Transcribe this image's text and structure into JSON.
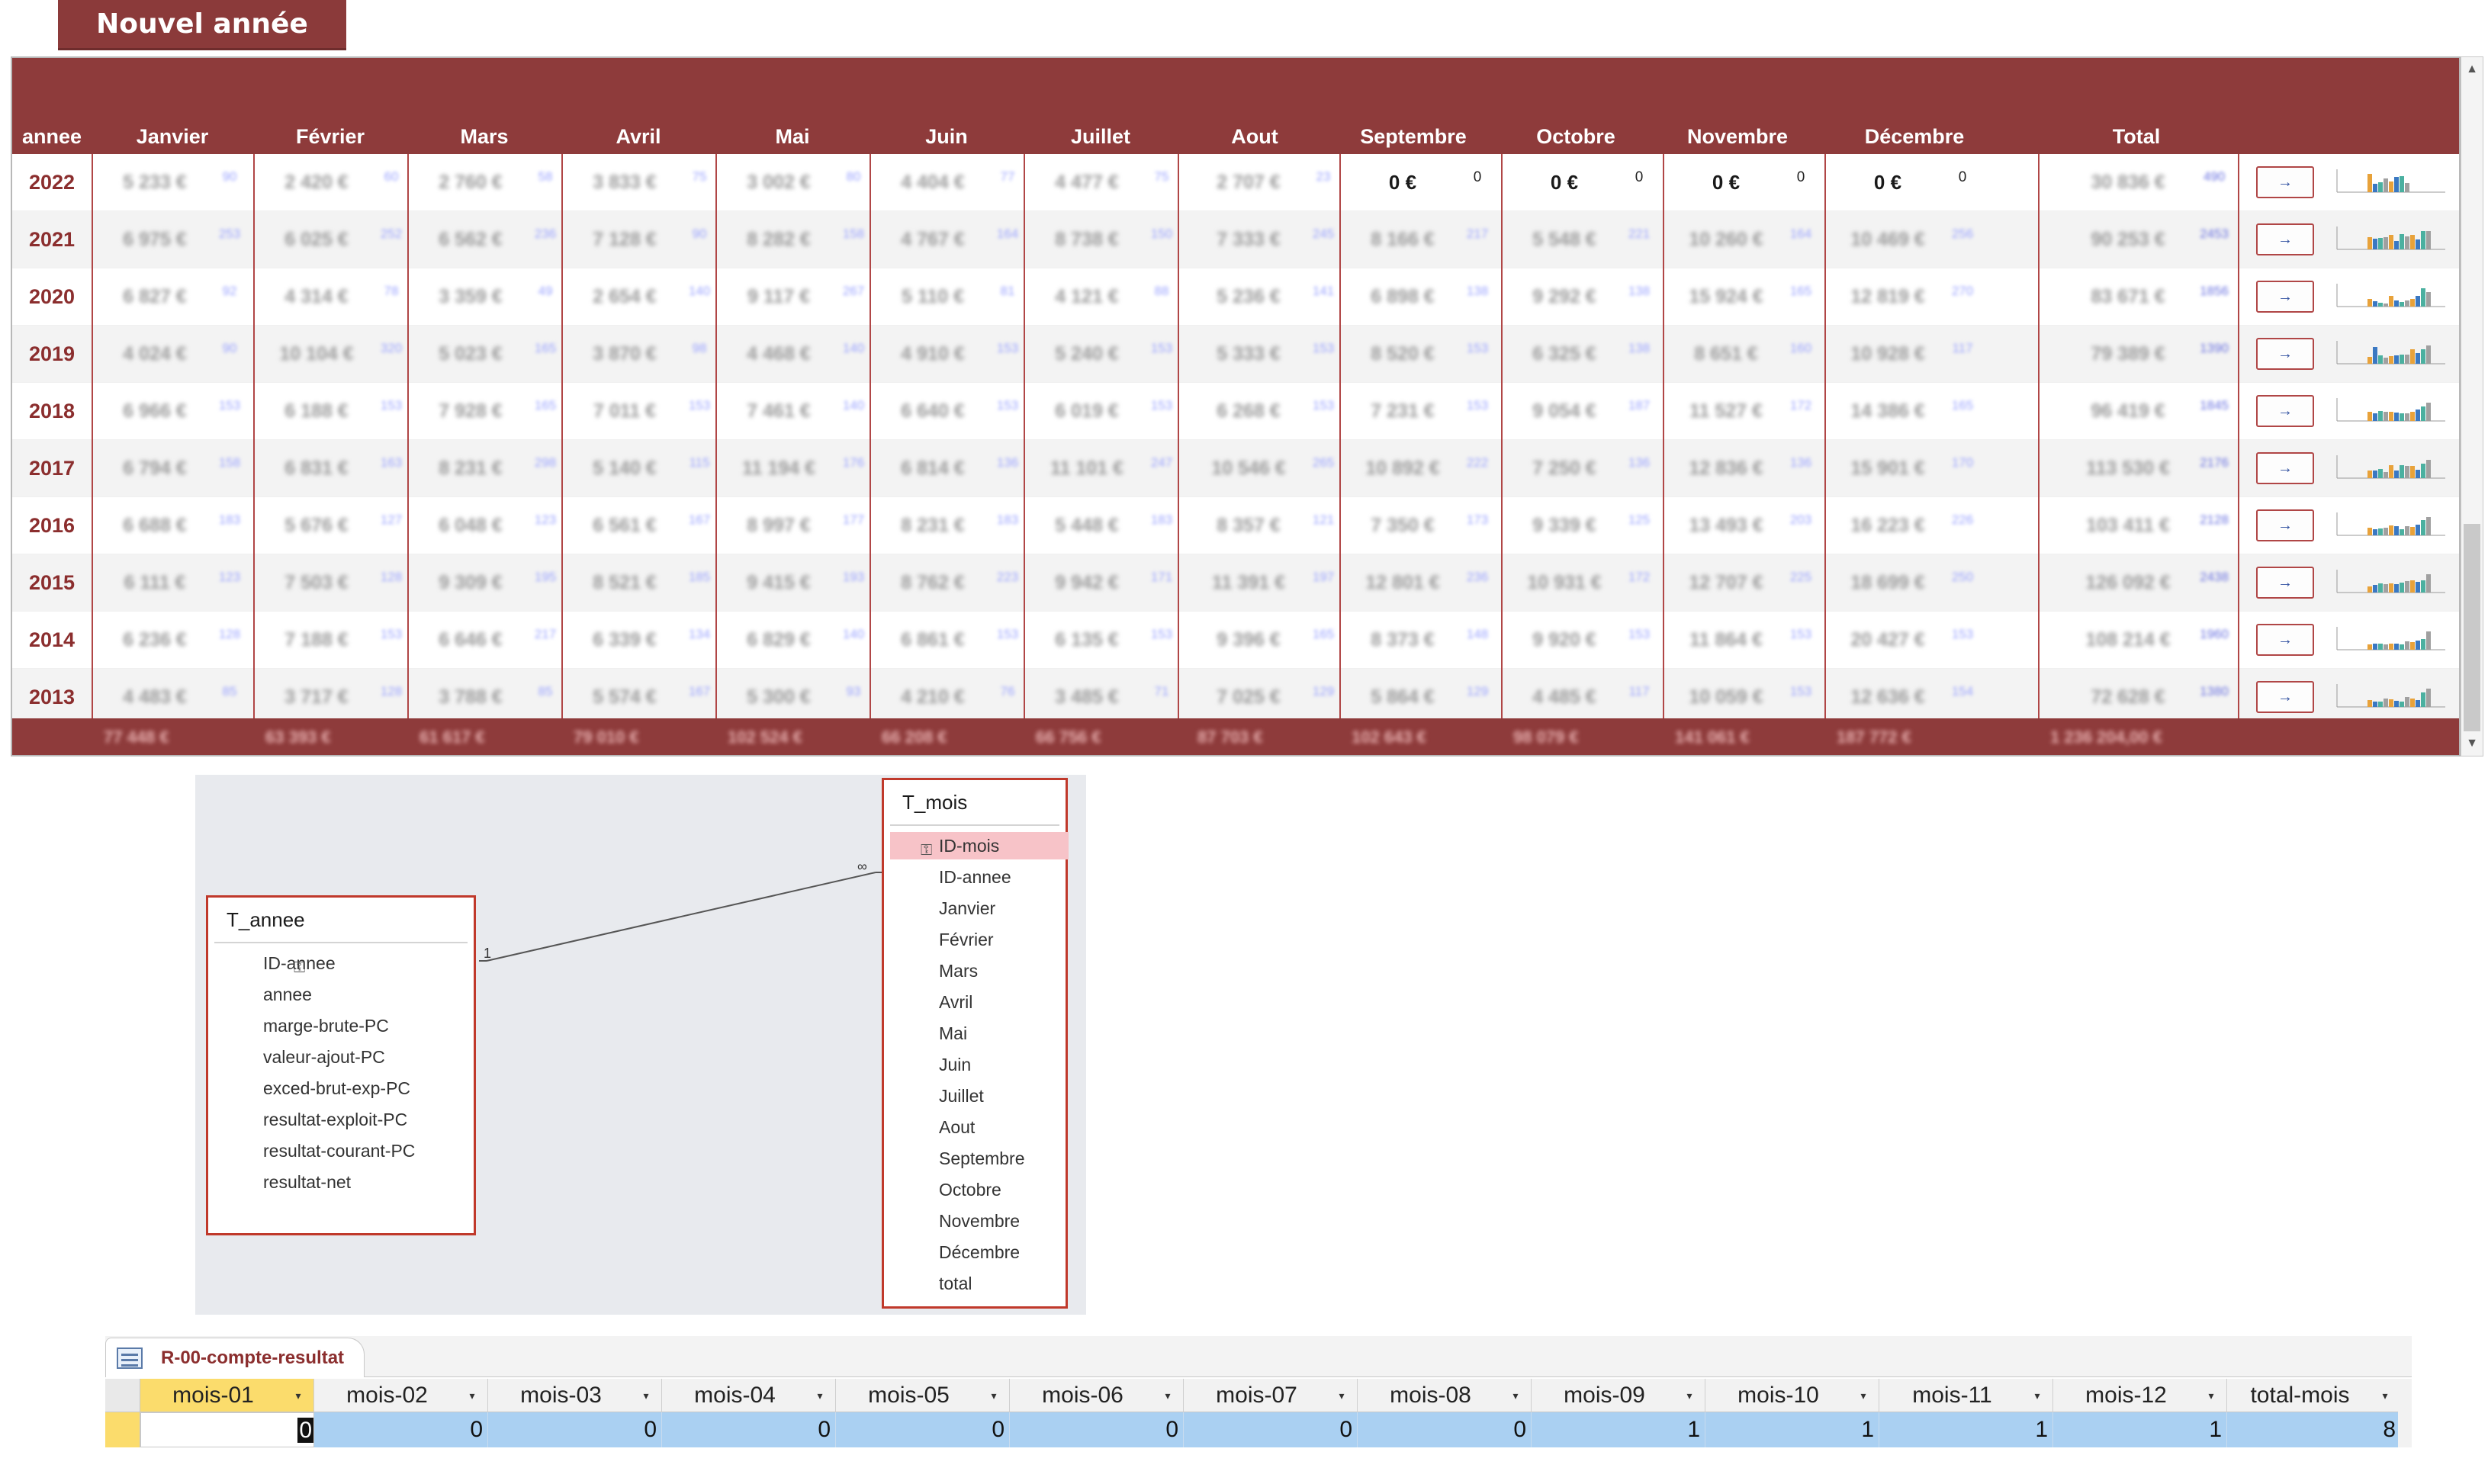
{
  "form": {
    "new_year_button": "Nouvel année",
    "columns": [
      "annee",
      "Janvier",
      "Février",
      "Mars",
      "Avril",
      "Mai",
      "Juin",
      "Juillet",
      "Aout",
      "Septembre",
      "Octobre",
      "Novembre",
      "Décembre",
      "Total"
    ],
    "rows": [
      {
        "year": "2022",
        "values": [
          "5 233 €",
          "2 420 €",
          "2 760 €",
          "3 833 €",
          "3 002 €",
          "4 404 €",
          "4 477 €",
          "2 707 €",
          "0 €",
          "0 €",
          "0 €",
          "0 €"
        ],
        "smalls": [
          "90",
          "60",
          "58",
          "75",
          "80",
          "77",
          "75",
          "23",
          "0",
          "0",
          "0",
          "0"
        ],
        "total": "30 836 €",
        "total_small": "490"
      },
      {
        "year": "2021",
        "values": [
          "6 975 €",
          "6 025 €",
          "6 562 €",
          "7 128 €",
          "8 282 €",
          "4 767 €",
          "8 738 €",
          "7 333 €",
          "8 166 €",
          "5 548 €",
          "10 260 €",
          "10 469 €"
        ],
        "smalls": [
          "253",
          "252",
          "236",
          "90",
          "158",
          "164",
          "150",
          "245",
          "217",
          "221",
          "164",
          "256"
        ],
        "total": "90 253 €",
        "total_small": "2453"
      },
      {
        "year": "2020",
        "values": [
          "6 827 €",
          "4 314 €",
          "3 359 €",
          "2 654 €",
          "9 117 €",
          "5 110 €",
          "4 121 €",
          "5 236 €",
          "6 898 €",
          "9 292 €",
          "15 924 €",
          "12 819 €"
        ],
        "smalls": [
          "92",
          "78",
          "49",
          "140",
          "267",
          "81",
          "88",
          "141",
          "138",
          "138",
          "165",
          "270"
        ],
        "total": "83 671 €",
        "total_small": "1856"
      },
      {
        "year": "2019",
        "values": [
          "4 024 €",
          "10 104 €",
          "5 023 €",
          "3 870 €",
          "4 468 €",
          "4 910 €",
          "5 240 €",
          "5 333 €",
          "8 520 €",
          "6 325 €",
          "8 651 €",
          "10 928 €"
        ],
        "smalls": [
          "90",
          "320",
          "165",
          "98",
          "140",
          "153",
          "153",
          "153",
          "153",
          "138",
          "160",
          "117"
        ],
        "total": "79 389 €",
        "total_small": "1390"
      },
      {
        "year": "2018",
        "values": [
          "6 966 €",
          "6 188 €",
          "7 928 €",
          "7 011 €",
          "7 461 €",
          "6 640 €",
          "6 019 €",
          "6 268 €",
          "7 231 €",
          "9 054 €",
          "11 527 €",
          "14 386 €"
        ],
        "smalls": [
          "153",
          "153",
          "165",
          "153",
          "140",
          "153",
          "153",
          "153",
          "153",
          "187",
          "172",
          "165"
        ],
        "total": "96 419 €",
        "total_small": "1845"
      },
      {
        "year": "2017",
        "values": [
          "6 794 €",
          "6 831 €",
          "8 231 €",
          "5 140 €",
          "11 194 €",
          "6 814 €",
          "11 101 €",
          "10 546 €",
          "10 892 €",
          "7 250 €",
          "12 836 €",
          "15 901 €"
        ],
        "smalls": [
          "158",
          "163",
          "298",
          "115",
          "176",
          "136",
          "247",
          "265",
          "222",
          "136",
          "136",
          "170"
        ],
        "total": "113 530 €",
        "total_small": "2176"
      },
      {
        "year": "2016",
        "values": [
          "6 688 €",
          "5 676 €",
          "6 048 €",
          "6 561 €",
          "8 997 €",
          "8 231 €",
          "5 448 €",
          "8 357 €",
          "7 350 €",
          "9 339 €",
          "13 493 €",
          "16 223 €"
        ],
        "smalls": [
          "183",
          "127",
          "123",
          "167",
          "177",
          "183",
          "183",
          "121",
          "173",
          "125",
          "203",
          "226"
        ],
        "total": "103 411 €",
        "total_small": "2128"
      },
      {
        "year": "2015",
        "values": [
          "6 111 €",
          "7 503 €",
          "9 309 €",
          "8 521 €",
          "9 415 €",
          "8 762 €",
          "9 942 €",
          "11 391 €",
          "12 801 €",
          "10 931 €",
          "12 707 €",
          "18 699 €"
        ],
        "smalls": [
          "123",
          "128",
          "195",
          "185",
          "193",
          "223",
          "171",
          "197",
          "236",
          "172",
          "225",
          "250"
        ],
        "total": "126 092 €",
        "total_small": "2438"
      },
      {
        "year": "2014",
        "values": [
          "6 236 €",
          "7 188 €",
          "6 646 €",
          "6 339 €",
          "6 829 €",
          "6 861 €",
          "6 135 €",
          "9 396 €",
          "8 373 €",
          "9 920 €",
          "11 864 €",
          "20 427 €"
        ],
        "smalls": [
          "128",
          "153",
          "217",
          "134",
          "140",
          "153",
          "153",
          "165",
          "148",
          "153",
          "153",
          "153"
        ],
        "total": "108 214 €",
        "total_small": "1960"
      },
      {
        "year": "2013",
        "values": [
          "4 483 €",
          "3 717 €",
          "3 788 €",
          "5 574 €",
          "5 300 €",
          "4 210 €",
          "3 485 €",
          "7 025 €",
          "5 864 €",
          "4 485 €",
          "10 059 €",
          "12 636 €"
        ],
        "smalls": [
          "85",
          "128",
          "85",
          "167",
          "93",
          "76",
          "71",
          "129",
          "129",
          "117",
          "153",
          "154"
        ],
        "total": "72 628 €",
        "total_small": "1380"
      }
    ],
    "row_button_symbol": "→",
    "footer_totals": [
      "77 448 €",
      "63 393 €",
      "61 617 €",
      "79 010 €",
      "102 524 €",
      "66 208 €",
      "66 756 €",
      "87 703 €",
      "102 643 €",
      "98 079 €",
      "141 061 €",
      "187 772 €",
      "1 236 204,00 €"
    ],
    "scroll_up": "▲",
    "scroll_down": "▼"
  },
  "diagram": {
    "table_annee": {
      "title": "T_annee",
      "fields": [
        "ID-annee",
        "annee",
        "marge-brute-PC",
        "valeur-ajout-PC",
        "exced-brut-exp-PC",
        "resultat-exploit-PC",
        "resultat-courant-PC",
        "resultat-net"
      ]
    },
    "table_mois": {
      "title": "T_mois",
      "fields": [
        "ID-mois",
        "ID-annee",
        "Janvier",
        "Février",
        "Mars",
        "Avril",
        "Mai",
        "Juin",
        "Juillet",
        "Aout",
        "Septembre",
        "Octobre",
        "Novembre",
        "Décembre",
        "total"
      ]
    },
    "key_symbol": "⚿",
    "relation_one": "1",
    "relation_many": "∞"
  },
  "datasheet": {
    "tab_label": "R-00-compte-resultat",
    "columns": [
      "mois-01",
      "mois-02",
      "mois-03",
      "mois-04",
      "mois-05",
      "mois-06",
      "mois-07",
      "mois-08",
      "mois-09",
      "mois-10",
      "mois-11",
      "mois-12",
      "total-mois"
    ],
    "values": [
      "0",
      "0",
      "0",
      "0",
      "0",
      "0",
      "0",
      "0",
      "1",
      "1",
      "1",
      "1",
      "8"
    ],
    "dropdown_symbol": "▾"
  },
  "colors": {
    "brand_red": "#8e3b3b",
    "year_text": "#8b2e2e",
    "selection_yellow": "#fbdc6c",
    "row_blue": "#aad0f2",
    "pk_highlight": "#f7c3c8",
    "chart_bars": [
      "#e8a23a",
      "#3a78c2",
      "#4bb0a0",
      "#a0a0a0"
    ]
  }
}
